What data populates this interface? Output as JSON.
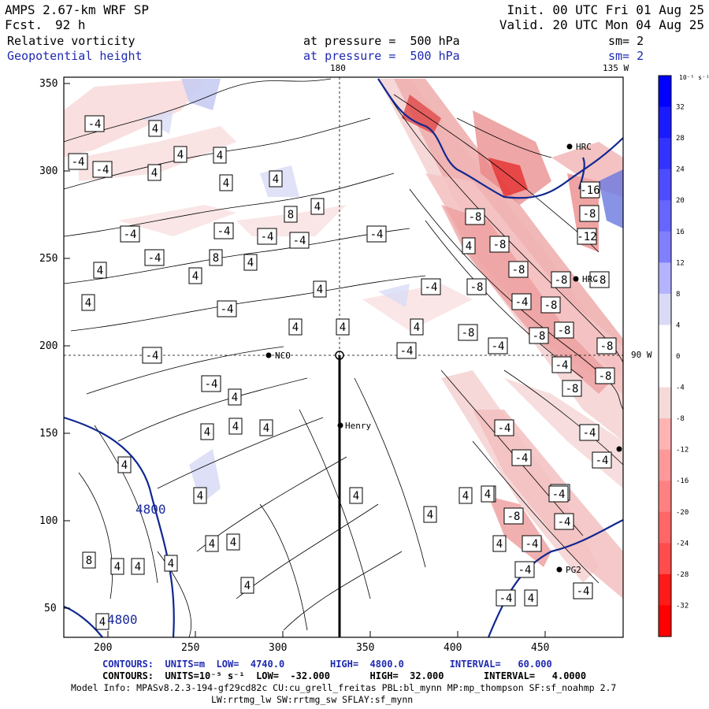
{
  "header": {
    "model": "AMPS 2.67-km WRF SP",
    "fcst_label": "Fcst.",
    "fcst_value": "92 h",
    "init": "Init. 00 UTC Fri 01 Aug 25",
    "valid": "Valid. 20 UTC Mon 04 Aug 25",
    "field1": "Relative vorticity",
    "field1_pressure": "at pressure =  500 hPa",
    "field1_smooth": "sm= 2",
    "field2": "Geopotential height",
    "field2_pressure": "at pressure =  500 hPa",
    "field2_smooth": "sm= 2"
  },
  "map": {
    "meridian_180": "180",
    "meridian_135w": "135 W",
    "meridian_90w": "90 W",
    "x_ticks": [
      "200",
      "250",
      "300",
      "350",
      "400",
      "450"
    ],
    "y_ticks": [
      "350",
      "300",
      "250",
      "200",
      "150",
      "100",
      "50"
    ],
    "stations": {
      "nco": "NCO",
      "henry": "Henry",
      "pg2": "PG2",
      "hrc": "HRC",
      "hrc_b": "HRC"
    },
    "height_label_1": "4800",
    "height_label_2": "4800",
    "vort_labels": [
      "-4",
      "4",
      "-4",
      "4",
      "-4",
      "4",
      "4",
      "4",
      "4",
      "8",
      "4",
      "4",
      "-4",
      "-4",
      "-4",
      "-4",
      "4",
      "-4",
      "8",
      "4",
      "4",
      "4",
      "-4",
      "4",
      "4",
      "-4",
      "4",
      "-4",
      "-4",
      "-4",
      "4",
      "4",
      "4",
      "4",
      "4",
      "4",
      "4",
      "4",
      "4",
      "8",
      "4",
      "4",
      "4",
      "4",
      "4",
      "4",
      "4",
      "4",
      "4",
      "-8",
      "-8",
      "-8",
      "-12",
      "-16",
      "-8",
      "-8",
      "-4",
      "-8",
      "-4",
      "-8",
      "-8",
      "-8",
      "-4",
      "-8",
      "-8",
      "-8",
      "-8",
      "-4",
      "-4",
      "-8",
      "-4",
      "-4",
      "4",
      "-4",
      "-8",
      "-4",
      "-4",
      "-4",
      "4",
      "-4",
      "4",
      "-4",
      "-4",
      "-4",
      "4"
    ]
  },
  "colorbar": {
    "unit": "10⁻⁵ s⁻¹",
    "labels": [
      "32",
      "28",
      "24",
      "20",
      "16",
      "12",
      "8",
      "4",
      "0",
      "-4",
      "-8",
      "-12",
      "-16",
      "-20",
      "-24",
      "-28",
      "-32"
    ],
    "colors": [
      "#0000ff",
      "#1a1aff",
      "#3333ff",
      "#4d4dff",
      "#6666ff",
      "#8080ff",
      "#b3b3ff",
      "#dadaf5",
      "#ffffff",
      "#ffffff",
      "#f5dada",
      "#ffb3b3",
      "#ff9999",
      "#ff8080",
      "#ff6666",
      "#ff4d4d",
      "#ff1a1a",
      "#ff0000"
    ]
  },
  "footer": {
    "line1": "CONTOURS:  UNITS=m  LOW=  4740.0        HIGH=  4800.0        INTERVAL=   60.000",
    "line2": "CONTOURS:  UNITS=10⁻⁵ s⁻¹  LOW=  -32.000       HIGH=  32.000       INTERVAL=   4.0000",
    "line3": "Model Info: MPASv8.2.3-194-gf29cd82c CU:cu_grell_freitas PBL:bl_mynn MP:mp_thompson SF:sf_noahmp 2.7",
    "line4": "LW:rrtmg_lw SW:rrtmg_sw SFLAY:sf_mynn"
  }
}
